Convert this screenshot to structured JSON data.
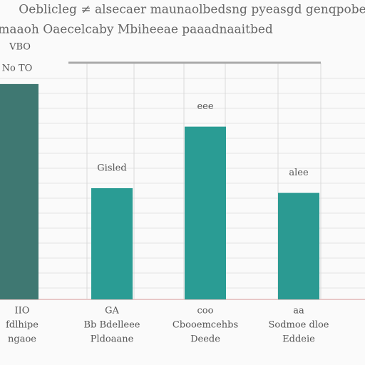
{
  "chart_data": {
    "type": "bar",
    "title": "Oeblicleg ≠ alsecaer maunaolbedsng pyeasgd genqpobe",
    "subtitle": "maaoh Oaecelcaby Mbiheeae paaadnaaitbed",
    "annotations": [
      "VBO",
      "No TO"
    ],
    "categories": [
      [
        "IIO",
        "fdlhipe",
        "ngaoe"
      ],
      [
        "GA",
        "Bb Bdelleee",
        "Pldoaane"
      ],
      [
        "coo",
        "Cbooemcehbs",
        "Deede"
      ],
      [
        "aa",
        "Sodmoe dloe",
        "Eddeie"
      ]
    ],
    "values": [
      91,
      47,
      73,
      45
    ],
    "value_labels": [
      null,
      "Gisled",
      "eee",
      "alee"
    ],
    "colors": [
      "#3f7872",
      "#2a9c94",
      "#2a9c94",
      "#2b9a92"
    ],
    "ylim": [
      0,
      100
    ],
    "grid": true
  }
}
